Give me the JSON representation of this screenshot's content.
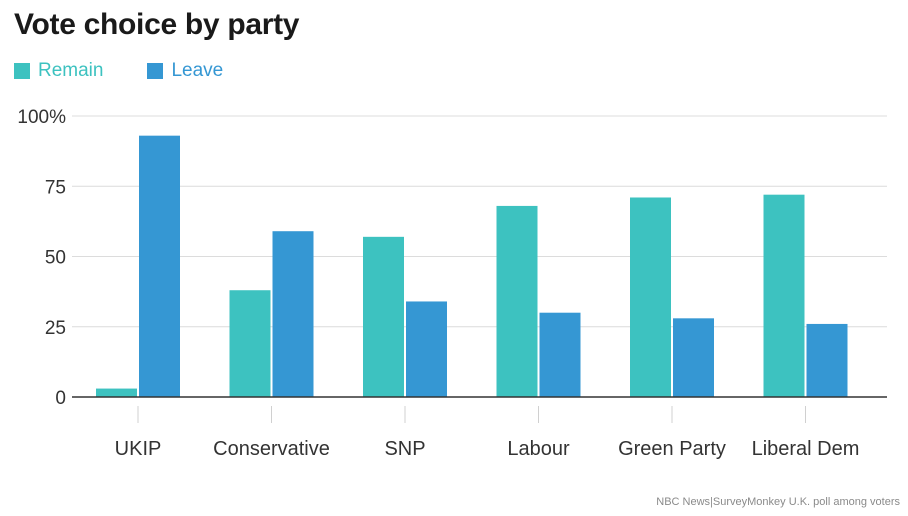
{
  "chart_data": {
    "type": "bar",
    "title": "Vote choice by party",
    "categories": [
      "UKIP",
      "Conservative",
      "SNP",
      "Labour",
      "Green Party",
      "Liberal Dem"
    ],
    "series": [
      {
        "name": "Remain",
        "color": "#3dc2c0",
        "values": [
          3,
          38,
          57,
          68,
          71,
          72
        ]
      },
      {
        "name": "Leave",
        "color": "#3597d3",
        "values": [
          93,
          59,
          34,
          30,
          28,
          26
        ]
      }
    ],
    "ylim": [
      0,
      100
    ],
    "yticks": [
      0,
      25,
      50,
      75,
      100
    ],
    "ytick_labels": [
      "0",
      "25",
      "50",
      "75",
      "100%"
    ],
    "grid": true,
    "legend_position": "top-left",
    "source": "NBC News|SurveyMonkey U.K. poll among voters"
  }
}
